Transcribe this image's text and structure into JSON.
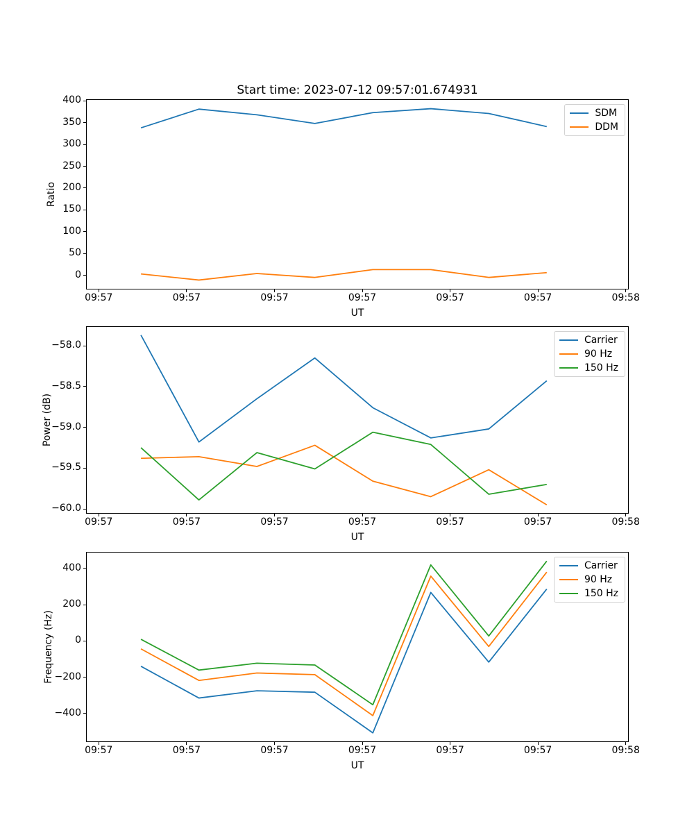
{
  "figure": {
    "background": "#ffffff"
  },
  "palette": {
    "blue": "#1f77b4",
    "orange": "#ff7f0e",
    "green": "#2ca02c"
  },
  "chart_data": [
    {
      "type": "line",
      "title": "Start time: 2023-07-12 09:57:01.674931",
      "xlabel": "UT",
      "ylabel": "Ratio",
      "x_axis": {
        "unit": "seconds after 09:57:00 UT",
        "xlim": [
          -1.37,
          60.26
        ],
        "ticks": [
          0,
          10,
          20,
          30,
          40,
          50,
          60
        ],
        "ticklabels": [
          "09:57",
          "09:57",
          "09:57",
          "09:57",
          "09:57",
          "09:57",
          "09:58"
        ]
      },
      "y_axis": {
        "ylim": [
          -31,
          402
        ],
        "ticks": [
          0,
          50,
          100,
          150,
          200,
          250,
          300,
          350,
          400
        ],
        "ticklabels": [
          "0",
          "50",
          "100",
          "150",
          "200",
          "250",
          "300",
          "350",
          "400"
        ]
      },
      "x": [
        4.8,
        11.4,
        18.0,
        24.6,
        31.2,
        37.8,
        44.4,
        51.0
      ],
      "series": [
        {
          "name": "SDM",
          "color": "#1f77b4",
          "values": [
            338,
            381,
            368,
            348,
            373,
            382,
            371,
            341
          ]
        },
        {
          "name": "DDM",
          "color": "#ff7f0e",
          "values": [
            3,
            -11,
            4,
            -5,
            13,
            13,
            -5,
            6
          ]
        }
      ],
      "legend": {
        "position": "upper right",
        "entries": [
          "SDM",
          "DDM"
        ]
      },
      "grid": false
    },
    {
      "type": "line",
      "xlabel": "UT",
      "ylabel": "Power (dB)",
      "x_axis": {
        "unit": "seconds after 09:57:00 UT",
        "xlim": [
          -1.37,
          60.26
        ],
        "ticks": [
          0,
          10,
          20,
          30,
          40,
          50,
          60
        ],
        "ticklabels": [
          "09:57",
          "09:57",
          "09:57",
          "09:57",
          "09:57",
          "09:57",
          "09:58"
        ]
      },
      "y_axis": {
        "ylim": [
          -60.05,
          -57.77
        ],
        "ticks": [
          -60.0,
          -59.5,
          -59.0,
          -58.5,
          -58.0
        ],
        "ticklabels": [
          "−60.0",
          "−59.5",
          "−59.0",
          "−58.5",
          "−58.0"
        ]
      },
      "x": [
        4.8,
        11.4,
        18.0,
        24.6,
        31.2,
        37.8,
        44.4,
        51.0
      ],
      "series": [
        {
          "name": "Carrier",
          "color": "#1f77b4",
          "values": [
            -57.87,
            -59.18,
            -58.65,
            -58.15,
            -58.76,
            -59.13,
            -59.02,
            -58.43
          ]
        },
        {
          "name": "90 Hz",
          "color": "#ff7f0e",
          "values": [
            -59.38,
            -59.36,
            -59.48,
            -59.22,
            -59.66,
            -59.85,
            -59.52,
            -59.95
          ]
        },
        {
          "name": "150 Hz",
          "color": "#2ca02c",
          "values": [
            -59.25,
            -59.89,
            -59.31,
            -59.51,
            -59.06,
            -59.21,
            -59.82,
            -59.7
          ]
        }
      ],
      "legend": {
        "position": "upper right",
        "entries": [
          "Carrier",
          "90 Hz",
          "150 Hz"
        ]
      },
      "grid": false
    },
    {
      "type": "line",
      "xlabel": "UT",
      "ylabel": "Frequency (Hz)",
      "x_axis": {
        "unit": "seconds after 09:57:00 UT",
        "xlim": [
          -1.37,
          60.26
        ],
        "ticks": [
          0,
          10,
          20,
          30,
          40,
          50,
          60
        ],
        "ticklabels": [
          "09:57",
          "09:57",
          "09:57",
          "09:57",
          "09:57",
          "09:57",
          "09:58"
        ]
      },
      "y_axis": {
        "ylim": [
          -554,
          487
        ],
        "ticks": [
          -400,
          -200,
          0,
          200,
          400
        ],
        "ticklabels": [
          "−400",
          "−200",
          "0",
          "200",
          "400"
        ]
      },
      "x": [
        4.8,
        11.4,
        18.0,
        24.6,
        31.2,
        37.8,
        44.4,
        51.0
      ],
      "series": [
        {
          "name": "Carrier",
          "color": "#1f77b4",
          "values": [
            -140,
            -315,
            -275,
            -283,
            -507,
            267,
            -117,
            286
          ]
        },
        {
          "name": "90 Hz",
          "color": "#ff7f0e",
          "values": [
            -44,
            -218,
            -177,
            -186,
            -412,
            357,
            -31,
            379
          ]
        },
        {
          "name": "150 Hz",
          "color": "#2ca02c",
          "values": [
            9,
            -161,
            -123,
            -133,
            -352,
            419,
            27,
            440
          ]
        }
      ],
      "legend": {
        "position": "upper right",
        "entries": [
          "Carrier",
          "90 Hz",
          "150 Hz"
        ]
      },
      "grid": false
    }
  ]
}
